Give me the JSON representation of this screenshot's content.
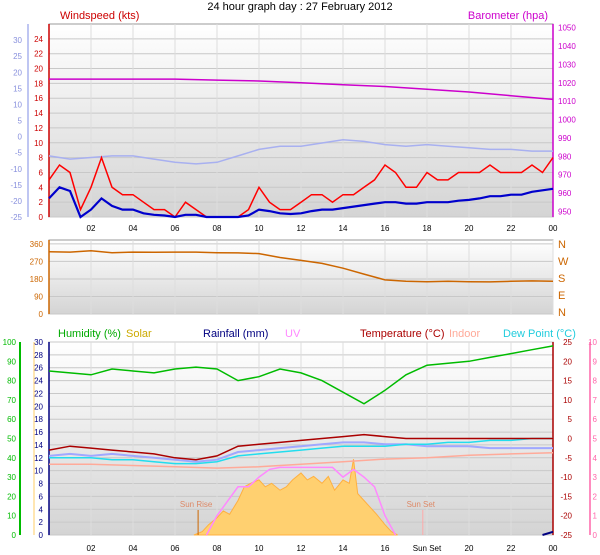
{
  "title": "24 hour graph day : 27 February 2012",
  "x_ticks": [
    "02",
    "04",
    "06",
    "08",
    "10",
    "12",
    "14",
    "16",
    "18",
    "20",
    "22",
    "00"
  ],
  "x_ticks_bottom": [
    "02",
    "04",
    "06",
    "08",
    "10",
    "12",
    "14",
    "16",
    "Sun Set",
    "20",
    "22",
    "00"
  ],
  "colors": {
    "wind_avg": "#0000cc",
    "wind_gust": "#ff0000",
    "barometer": "#cc00cc",
    "temperature_axis": "#aab4ee",
    "direction": "#cc6600",
    "humidity": "#00bb00",
    "solar": "#ccaa00",
    "rainfall": "#000080",
    "uv": "#ff88ff",
    "temperature": "#aa0000",
    "indoor": "#ffaa99",
    "dewpoint": "#22ddee",
    "sun_fill": "#ffd070",
    "sun_line": "#cc6600",
    "sunset_line": "#ffaaaa",
    "feels_like": "#a0a8ff"
  },
  "chart_data": [
    {
      "type": "line",
      "panel": "wind",
      "title": "24 hour graph day : 27 February 2012",
      "left_axis_label": "Windspeed (kts)",
      "right_axis_label": "Barometer (hpa)",
      "left_ticks": [
        0,
        2,
        4,
        6,
        8,
        10,
        12,
        14,
        16,
        18,
        20,
        22,
        24
      ],
      "left_ylim": [
        0,
        25
      ],
      "right_ticks": [
        950,
        960,
        970,
        980,
        990,
        1000,
        1010,
        1020,
        1030,
        1040,
        1050
      ],
      "right_ylim": [
        950,
        1050
      ],
      "outer_ticks": [
        30,
        25,
        20,
        15,
        10,
        5,
        0,
        -5,
        -10,
        -15,
        -20,
        -25
      ],
      "outer_ylim": [
        -25,
        35
      ],
      "x_hours": [
        0,
        24
      ],
      "series": [
        {
          "key": "gust",
          "x": [
            0,
            0.5,
            1,
            1.5,
            2,
            2.5,
            3,
            3.5,
            4,
            4.5,
            5,
            5.5,
            6,
            6.5,
            7,
            7.5,
            8,
            8.5,
            9,
            9.5,
            10,
            10.5,
            11,
            11.5,
            12,
            12.5,
            13,
            13.5,
            14,
            14.5,
            15,
            15.5,
            16,
            16.5,
            17,
            17.5,
            18,
            18.5,
            19,
            19.5,
            20,
            20.5,
            21,
            21.5,
            22,
            22.5,
            23,
            23.5,
            24
          ],
          "values": [
            5,
            7,
            6,
            1,
            4,
            8,
            4,
            3,
            3,
            2,
            1,
            1,
            0,
            2,
            1,
            0,
            0,
            0,
            0,
            1,
            4,
            2,
            1,
            1,
            2,
            3,
            3,
            2,
            3,
            3,
            4,
            5,
            7,
            6,
            4,
            4,
            6,
            5,
            5,
            6,
            6,
            6,
            7,
            6,
            6,
            6,
            7,
            6,
            8
          ]
        },
        {
          "key": "average",
          "x": [
            0,
            0.5,
            1,
            1.5,
            2,
            2.5,
            3,
            3.5,
            4,
            4.5,
            5,
            5.5,
            6,
            6.5,
            7,
            7.5,
            8,
            8.5,
            9,
            9.5,
            10,
            10.5,
            11,
            11.5,
            12,
            12.5,
            13,
            13.5,
            14,
            14.5,
            15,
            15.5,
            16,
            16.5,
            17,
            17.5,
            18,
            18.5,
            19,
            19.5,
            20,
            20.5,
            21,
            21.5,
            22,
            22.5,
            23,
            23.5,
            24
          ],
          "values": [
            2.5,
            4,
            3.5,
            0,
            1,
            2.5,
            1.5,
            1,
            1,
            0.5,
            0.3,
            0.2,
            0,
            0.3,
            0.3,
            0,
            0,
            0,
            0,
            0.2,
            1,
            0.8,
            0.5,
            0.4,
            0.5,
            0.8,
            1,
            1,
            1.2,
            1.4,
            1.6,
            1.8,
            2,
            2,
            1.8,
            1.8,
            2,
            2,
            2,
            2.2,
            2.3,
            2.5,
            2.8,
            2.8,
            3,
            3,
            3.4,
            3.6,
            3.8
          ]
        },
        {
          "key": "barometer",
          "x": [
            0,
            2,
            4,
            6,
            8,
            10,
            12,
            14,
            16,
            18,
            20,
            22,
            24
          ],
          "values": [
            1022,
            1022,
            1022,
            1022,
            1021.5,
            1021,
            1020,
            1019,
            1018,
            1016.5,
            1015,
            1013,
            1011
          ]
        },
        {
          "key": "temp_scale",
          "x": [
            0,
            1,
            2,
            3,
            4,
            5,
            6,
            7,
            8,
            9,
            10,
            11,
            12,
            13,
            14,
            15,
            16,
            17,
            18,
            19,
            20,
            21,
            22,
            23,
            24
          ],
          "values": [
            -6,
            -7,
            -6.5,
            -6,
            -6,
            -7,
            -8,
            -8.5,
            -8,
            -6,
            -4,
            -3,
            -3,
            -2,
            -1,
            -1.5,
            -2.5,
            -3,
            -2.5,
            -3,
            -3.5,
            -4,
            -4,
            -4.5,
            -4.5
          ]
        }
      ]
    },
    {
      "type": "line",
      "panel": "direction",
      "left_ticks": [
        0,
        90,
        180,
        270,
        360
      ],
      "ylim": [
        0,
        360
      ],
      "right_labels": [
        "N",
        "W",
        "S",
        "E",
        "N"
      ],
      "x": [
        0,
        1,
        2,
        3,
        4,
        5,
        6,
        7,
        8,
        9,
        10,
        11,
        12,
        13,
        14,
        15,
        16,
        17,
        18,
        19,
        20,
        21,
        22,
        23,
        24
      ],
      "values": [
        320,
        318,
        325,
        315,
        318,
        317,
        318,
        318,
        315,
        314,
        310,
        290,
        275,
        260,
        235,
        205,
        175,
        168,
        166,
        168,
        166,
        165,
        168,
        170,
        168
      ]
    },
    {
      "type": "line",
      "panel": "temperature",
      "legend": [
        "Humidity (%)",
        "Solar",
        "Rainfall (mm)",
        "UV",
        "Temperature (°C)",
        "Indoor",
        "Dew Point (°C)"
      ],
      "humidity_ticks": [
        0,
        10,
        20,
        30,
        40,
        50,
        60,
        70,
        80,
        90,
        100
      ],
      "humidity_ylim": [
        0,
        100
      ],
      "rain_ticks": [
        0,
        2,
        4,
        6,
        8,
        10,
        12,
        14,
        16,
        18,
        20,
        22,
        24,
        26,
        28,
        30
      ],
      "rain_ylim": [
        0,
        30
      ],
      "temp_ticks": [
        25,
        20,
        15,
        10,
        5,
        0,
        -5,
        -10,
        -15,
        -20,
        -25
      ],
      "temp_ylim": [
        -25,
        25
      ],
      "uv_ticks": [
        10,
        9,
        8,
        7,
        6,
        5,
        4,
        3,
        2,
        1,
        0
      ],
      "uv_ylim": [
        0,
        10
      ],
      "sun_rise_label": "Sun Rise",
      "sun_set_label": "Sun Set",
      "sun_rise_hour": 7.1,
      "sun_set_hour": 17.8,
      "series": [
        {
          "key": "humidity",
          "x": [
            0,
            1,
            2,
            3,
            4,
            5,
            6,
            7,
            8,
            9,
            10,
            11,
            12,
            13,
            14,
            15,
            16,
            17,
            18,
            19,
            20,
            21,
            22,
            23,
            24
          ],
          "values": [
            85,
            84,
            83,
            86,
            85,
            84,
            86,
            87,
            86,
            80,
            82,
            86,
            84,
            80,
            74,
            68,
            75,
            83,
            88,
            89,
            90,
            92,
            94,
            96,
            98
          ]
        },
        {
          "key": "indoor",
          "x": [
            0,
            2,
            4,
            6,
            8,
            10,
            12,
            14,
            16,
            18,
            20,
            22,
            24
          ],
          "values": [
            11,
            11,
            10.8,
            10.6,
            10.4,
            10.6,
            11,
            11.4,
            11.8,
            12,
            12.4,
            12.6,
            12.8
          ]
        },
        {
          "key": "temperature",
          "x": [
            0,
            1,
            2,
            3,
            4,
            5,
            6,
            7,
            8,
            9,
            10,
            11,
            12,
            13,
            14,
            15,
            16,
            17,
            18,
            19,
            20,
            21,
            22,
            23,
            24
          ],
          "values": [
            -3,
            -2,
            -2.5,
            -3,
            -3.5,
            -4,
            -5,
            -5.5,
            -4.5,
            -2,
            -1.5,
            -1,
            -0.5,
            0,
            0.5,
            1,
            0.5,
            0,
            0,
            0,
            0,
            0,
            0,
            0,
            0
          ]
        },
        {
          "key": "feels_like",
          "x": [
            0,
            1,
            2,
            3,
            4,
            5,
            6,
            7,
            8,
            9,
            10,
            11,
            12,
            13,
            14,
            15,
            16,
            17,
            18,
            19,
            20,
            21,
            22,
            23,
            24
          ],
          "values": [
            -4.5,
            -4,
            -4.5,
            -4,
            -4.5,
            -5,
            -5.5,
            -6,
            -5.5,
            -3.5,
            -3,
            -2.5,
            -2,
            -1.5,
            -1,
            -1,
            -1.5,
            -1.5,
            -2,
            -2,
            -2,
            -2.5,
            -2.5,
            -2.5,
            -2.5
          ]
        },
        {
          "key": "dewpoint",
          "x": [
            0,
            1,
            2,
            3,
            4,
            5,
            6,
            7,
            8,
            9,
            10,
            11,
            12,
            13,
            14,
            15,
            16,
            17,
            18,
            19,
            20,
            21,
            22,
            23,
            24
          ],
          "values": [
            -5,
            -5,
            -5,
            -5.5,
            -5.5,
            -6,
            -6.5,
            -6.5,
            -6,
            -4.5,
            -4,
            -3.5,
            -3,
            -2.5,
            -2,
            -2,
            -2,
            -1.5,
            -1.5,
            -1,
            -1,
            -0.5,
            -0.5,
            0,
            0
          ]
        },
        {
          "key": "solar",
          "x": [
            6.9,
            7.3,
            7.6,
            8,
            8.3,
            8.6,
            9,
            9.3,
            9.6,
            10,
            10.3,
            10.6,
            11,
            11.3,
            11.6,
            12,
            12.3,
            12.6,
            13,
            13.3,
            13.6,
            14,
            14.3,
            14.5,
            14.7,
            15,
            15.3,
            15.6,
            16,
            16.3,
            16.6
          ],
          "values": [
            0,
            0.5,
            1.5,
            2.5,
            3.5,
            3,
            5,
            7,
            7.5,
            8,
            7,
            7.5,
            6.5,
            7,
            8,
            9,
            8,
            8.5,
            7.5,
            8.5,
            6.5,
            8,
            7.5,
            11,
            6,
            5,
            4,
            3,
            1.5,
            0.5,
            0
          ]
        },
        {
          "key": "uv",
          "x": [
            7.5,
            8,
            9,
            9.5,
            10,
            10.5,
            11,
            12,
            13,
            13.5,
            14,
            14.5,
            15,
            15.5,
            16,
            16.5
          ],
          "values": [
            0,
            1,
            2.5,
            2.5,
            3,
            3.4,
            3.5,
            3.5,
            3.5,
            3.5,
            3,
            3.4,
            3,
            2.5,
            1,
            0
          ]
        },
        {
          "key": "rainfall",
          "x": [
            23.5,
            24
          ],
          "values": [
            0,
            0.5
          ]
        }
      ]
    }
  ]
}
